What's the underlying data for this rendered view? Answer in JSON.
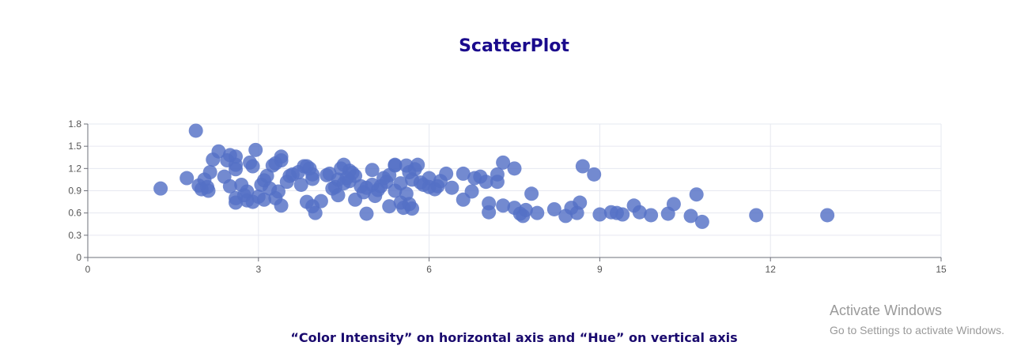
{
  "chart_data": {
    "type": "scatter",
    "title": "ScatterPlot",
    "caption": "“Color Intensity” on horizontal axis and “Hue” on vertical axis",
    "xlim": [
      0,
      15
    ],
    "ylim": [
      0,
      1.8
    ],
    "x_ticks": [
      "0",
      "3",
      "6",
      "9",
      "12",
      "15"
    ],
    "y_ticks": [
      "0",
      "0.3",
      "0.6",
      "0.9",
      "1.2",
      "1.5",
      "1.8"
    ],
    "grid": true,
    "point_color": "#5470c6",
    "points": [
      [
        1.28,
        0.93
      ],
      [
        1.74,
        1.07
      ],
      [
        1.9,
        1.71
      ],
      [
        1.95,
        0.97
      ],
      [
        2.0,
        0.92
      ],
      [
        2.05,
        1.05
      ],
      [
        2.1,
        0.95
      ],
      [
        2.12,
        0.9
      ],
      [
        2.15,
        1.15
      ],
      [
        2.2,
        1.32
      ],
      [
        2.3,
        1.43
      ],
      [
        2.4,
        1.09
      ],
      [
        2.45,
        1.31
      ],
      [
        2.5,
        1.38
      ],
      [
        2.5,
        0.96
      ],
      [
        2.6,
        1.36
      ],
      [
        2.6,
        1.25
      ],
      [
        2.6,
        1.19
      ],
      [
        2.6,
        0.8
      ],
      [
        2.6,
        0.74
      ],
      [
        2.7,
        0.98
      ],
      [
        2.75,
        0.84
      ],
      [
        2.8,
        0.77
      ],
      [
        2.8,
        0.89
      ],
      [
        2.85,
        1.28
      ],
      [
        2.9,
        1.23
      ],
      [
        2.9,
        0.75
      ],
      [
        2.95,
        1.45
      ],
      [
        3.0,
        0.82
      ],
      [
        3.05,
        0.98
      ],
      [
        3.1,
        1.04
      ],
      [
        3.1,
        0.78
      ],
      [
        3.15,
        1.1
      ],
      [
        3.2,
        0.93
      ],
      [
        3.25,
        1.24
      ],
      [
        3.3,
        1.27
      ],
      [
        3.3,
        0.8
      ],
      [
        3.35,
        0.89
      ],
      [
        3.4,
        1.31
      ],
      [
        3.4,
        1.36
      ],
      [
        3.4,
        0.7
      ],
      [
        3.5,
        1.02
      ],
      [
        3.55,
        1.1
      ],
      [
        3.6,
        1.12
      ],
      [
        3.7,
        1.15
      ],
      [
        3.75,
        0.98
      ],
      [
        3.8,
        1.23
      ],
      [
        3.85,
        1.23
      ],
      [
        3.85,
        0.75
      ],
      [
        3.9,
        1.2
      ],
      [
        3.95,
        1.12
      ],
      [
        3.95,
        1.06
      ],
      [
        3.95,
        0.69
      ],
      [
        4.0,
        0.6
      ],
      [
        4.1,
        0.76
      ],
      [
        4.2,
        1.11
      ],
      [
        4.25,
        1.13
      ],
      [
        4.3,
        0.93
      ],
      [
        4.35,
        0.95
      ],
      [
        4.4,
        0.84
      ],
      [
        4.4,
        1.05
      ],
      [
        4.45,
        1.2
      ],
      [
        4.5,
        1.25
      ],
      [
        4.5,
        1.0
      ],
      [
        4.55,
        1.07
      ],
      [
        4.6,
        1.17
      ],
      [
        4.65,
        1.14
      ],
      [
        4.6,
        1.03
      ],
      [
        4.7,
        1.1
      ],
      [
        4.7,
        0.78
      ],
      [
        4.8,
        0.96
      ],
      [
        4.85,
        0.88
      ],
      [
        4.9,
        0.94
      ],
      [
        4.9,
        0.59
      ],
      [
        5.0,
        1.18
      ],
      [
        5.0,
        0.98
      ],
      [
        5.05,
        0.83
      ],
      [
        5.1,
        0.91
      ],
      [
        5.15,
        0.96
      ],
      [
        5.2,
        1.07
      ],
      [
        5.25,
        1.02
      ],
      [
        5.3,
        1.11
      ],
      [
        5.3,
        0.69
      ],
      [
        5.4,
        1.25
      ],
      [
        5.4,
        1.24
      ],
      [
        5.4,
        0.9
      ],
      [
        5.5,
        1.0
      ],
      [
        5.5,
        0.74
      ],
      [
        5.55,
        0.67
      ],
      [
        5.6,
        1.24
      ],
      [
        5.6,
        0.86
      ],
      [
        5.65,
        0.72
      ],
      [
        5.65,
        1.15
      ],
      [
        5.7,
        1.05
      ],
      [
        5.7,
        0.66
      ],
      [
        5.75,
        1.19
      ],
      [
        5.8,
        1.25
      ],
      [
        5.85,
        1.01
      ],
      [
        5.9,
        0.98
      ],
      [
        6.0,
        1.07
      ],
      [
        6.0,
        0.95
      ],
      [
        6.1,
        0.92
      ],
      [
        6.15,
        0.96
      ],
      [
        6.2,
        1.03
      ],
      [
        6.3,
        1.13
      ],
      [
        6.4,
        0.94
      ],
      [
        6.6,
        1.13
      ],
      [
        6.6,
        0.78
      ],
      [
        6.75,
        0.89
      ],
      [
        6.8,
        1.07
      ],
      [
        6.9,
        1.09
      ],
      [
        7.0,
        1.02
      ],
      [
        7.05,
        0.73
      ],
      [
        7.05,
        0.61
      ],
      [
        7.2,
        1.12
      ],
      [
        7.2,
        1.02
      ],
      [
        7.3,
        1.28
      ],
      [
        7.3,
        0.7
      ],
      [
        7.5,
        1.2
      ],
      [
        7.5,
        0.67
      ],
      [
        7.6,
        0.59
      ],
      [
        7.65,
        0.56
      ],
      [
        7.7,
        0.64
      ],
      [
        7.8,
        0.86
      ],
      [
        7.9,
        0.6
      ],
      [
        8.2,
        0.65
      ],
      [
        8.4,
        0.56
      ],
      [
        8.5,
        0.67
      ],
      [
        8.6,
        0.6
      ],
      [
        8.65,
        0.74
      ],
      [
        8.7,
        1.23
      ],
      [
        8.9,
        1.12
      ],
      [
        9.0,
        0.58
      ],
      [
        9.2,
        0.61
      ],
      [
        9.3,
        0.6
      ],
      [
        9.4,
        0.58
      ],
      [
        9.6,
        0.7
      ],
      [
        9.7,
        0.61
      ],
      [
        9.9,
        0.57
      ],
      [
        10.2,
        0.59
      ],
      [
        10.3,
        0.72
      ],
      [
        10.6,
        0.56
      ],
      [
        10.7,
        0.85
      ],
      [
        10.8,
        0.48
      ],
      [
        11.75,
        0.57
      ],
      [
        13.0,
        0.57
      ]
    ]
  },
  "watermark": {
    "title": "Activate Windows",
    "subtitle": "Go to Settings to activate Windows."
  }
}
